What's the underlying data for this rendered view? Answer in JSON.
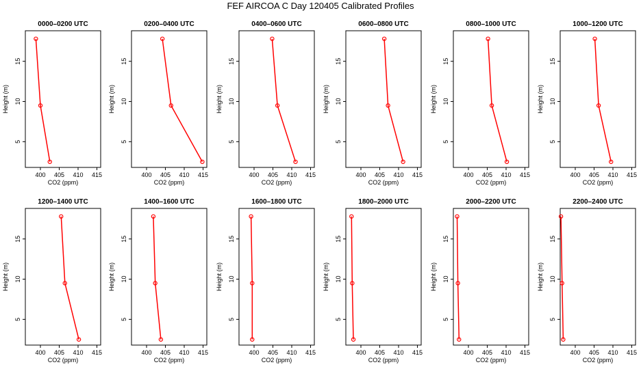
{
  "figure": {
    "title": "FEF AIRCOA C  Day 120405  Calibrated Profiles"
  },
  "chart_data": {
    "type": "line",
    "xlabel": "CO2 (ppm)",
    "ylabel": "Height (m)",
    "xlim": [
      396,
      416
    ],
    "ylim": [
      1.8,
      18.8
    ],
    "xticks": [
      400,
      405,
      410,
      415
    ],
    "yticks": [
      5,
      10,
      15
    ],
    "heights": [
      17.8,
      9.5,
      2.5
    ],
    "line_color": "#ff0000",
    "panels": [
      {
        "title": "0000–0200 UTC",
        "co2": [
          398.8,
          400.0,
          402.5
        ]
      },
      {
        "title": "0200–0400 UTC",
        "co2": [
          404.2,
          406.5,
          414.8
        ]
      },
      {
        "title": "0400–0600 UTC",
        "co2": [
          404.8,
          406.2,
          411.0
        ]
      },
      {
        "title": "0600–0800 UTC",
        "co2": [
          406.2,
          407.2,
          411.2
        ]
      },
      {
        "title": "0800–1000 UTC",
        "co2": [
          405.2,
          406.2,
          410.2
        ]
      },
      {
        "title": "1000–1200 UTC",
        "co2": [
          405.2,
          406.2,
          409.5
        ]
      },
      {
        "title": "1200–1400 UTC",
        "co2": [
          405.5,
          406.5,
          410.2
        ]
      },
      {
        "title": "1400–1600 UTC",
        "co2": [
          401.8,
          402.3,
          403.8
        ]
      },
      {
        "title": "1600–1800 UTC",
        "co2": [
          399.2,
          399.5,
          399.5
        ]
      },
      {
        "title": "1800–2000 UTC",
        "co2": [
          397.5,
          397.7,
          398.0
        ]
      },
      {
        "title": "2000–2200 UTC",
        "co2": [
          397.0,
          397.2,
          397.5
        ]
      },
      {
        "title": "2200–2400 UTC",
        "co2": [
          396.2,
          396.5,
          396.8
        ]
      }
    ]
  }
}
